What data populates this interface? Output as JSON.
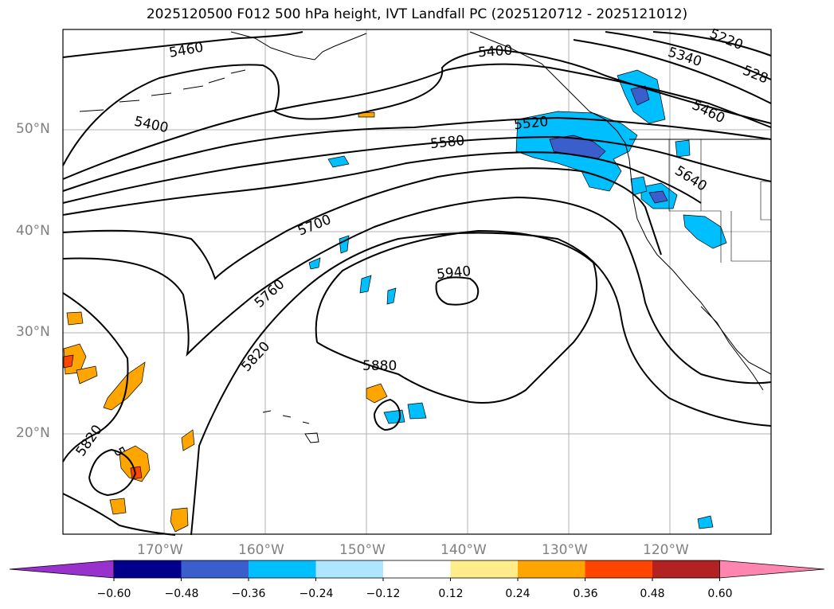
{
  "title": "2025120500 F012 500 hPa height, IVT Landfall PC (2025120712 - 2025121012)",
  "lat_labels": [
    "50°N",
    "40°N",
    "30°N",
    "20°N"
  ],
  "lon_labels": [
    "170°W",
    "160°W",
    "150°W",
    "140°W",
    "130°W",
    "120°W"
  ],
  "contour_labels": [
    "5460",
    "5400",
    "5400",
    "5220",
    "5340",
    "528",
    "5460",
    "5520",
    "5580",
    "5640",
    "5700",
    "5760",
    "5820",
    "5820",
    "5940",
    "5880",
    "5"
  ],
  "colorbar": {
    "ticks": [
      "−0.60",
      "−0.48",
      "−0.36",
      "−0.24",
      "−0.12",
      "0.12",
      "0.24",
      "0.36",
      "0.48",
      "0.60"
    ],
    "colors": [
      "#9932cc",
      "#00008b",
      "#3a5fcd",
      "#00bfff",
      "#aee6ff",
      "#ffffff",
      "#ffec8b",
      "#ffa500",
      "#ff4500",
      "#b22222",
      "#ff85b1"
    ]
  }
}
